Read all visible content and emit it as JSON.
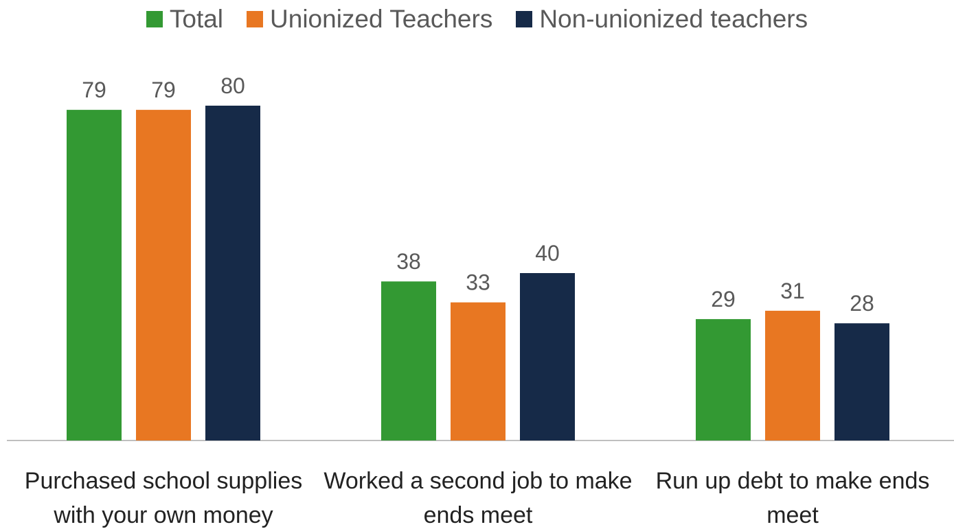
{
  "chart_data": {
    "type": "bar",
    "categories": [
      "Purchased school supplies with your own money",
      "Worked a second job to make ends meet",
      "Run up debt to make ends meet"
    ],
    "series": [
      {
        "name": "Total",
        "color": "#339933",
        "values": [
          79,
          38,
          29
        ]
      },
      {
        "name": "Unionized Teachers",
        "color": "#e87722",
        "values": [
          79,
          33,
          31
        ]
      },
      {
        "name": "Non-unionized teachers",
        "color": "#162a48",
        "values": [
          80,
          40,
          28
        ]
      }
    ],
    "legend": "top"
  }
}
